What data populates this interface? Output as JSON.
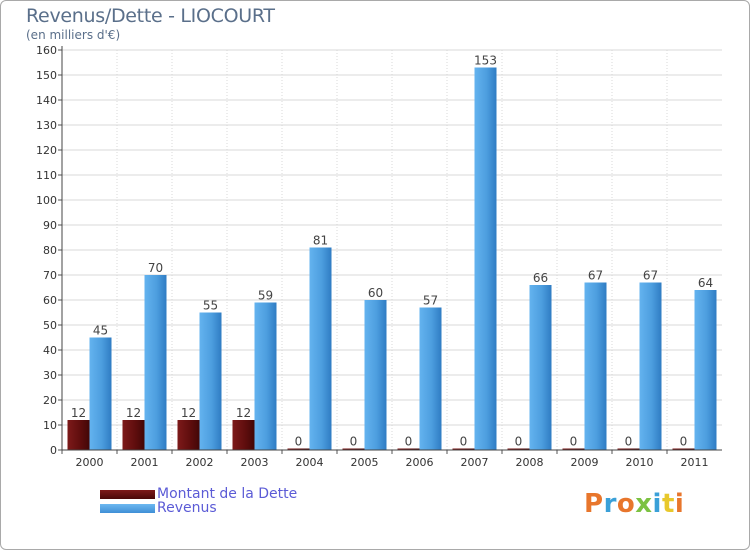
{
  "header": {
    "title": "Revenus/Dette - LIOCOURT",
    "subtitle": "(en milliers d'€)"
  },
  "legend": {
    "debt_label": "Montant de la Dette",
    "revenue_label": "Revenus"
  },
  "brand": {
    "text": "Proxiti"
  },
  "colors": {
    "debt": "#6b1010",
    "revenue": "#55a6e4",
    "axis_text": "#333333",
    "grid": "#d9d9d9",
    "title": "#5a6f8a",
    "legend_text": "#5b5bd6"
  },
  "chart_data": {
    "type": "bar",
    "title": "Revenus/Dette - LIOCOURT",
    "ylabel": "(en milliers d'€)",
    "xlabel": "",
    "categories": [
      "2000",
      "2001",
      "2002",
      "2003",
      "2004",
      "2005",
      "2006",
      "2007",
      "2008",
      "2009",
      "2010",
      "2011"
    ],
    "series": [
      {
        "name": "Montant de la Dette",
        "values": [
          12,
          12,
          12,
          12,
          0,
          0,
          0,
          0,
          0,
          0,
          0,
          0
        ]
      },
      {
        "name": "Revenus",
        "values": [
          45,
          70,
          55,
          59,
          81,
          60,
          57,
          153,
          66,
          67,
          67,
          64
        ]
      }
    ],
    "ylim": [
      0,
      160
    ],
    "yticks": [
      0,
      10,
      20,
      30,
      40,
      50,
      60,
      70,
      80,
      90,
      100,
      110,
      120,
      130,
      140,
      150,
      160
    ],
    "grid": true,
    "legend": "bottom-left"
  }
}
